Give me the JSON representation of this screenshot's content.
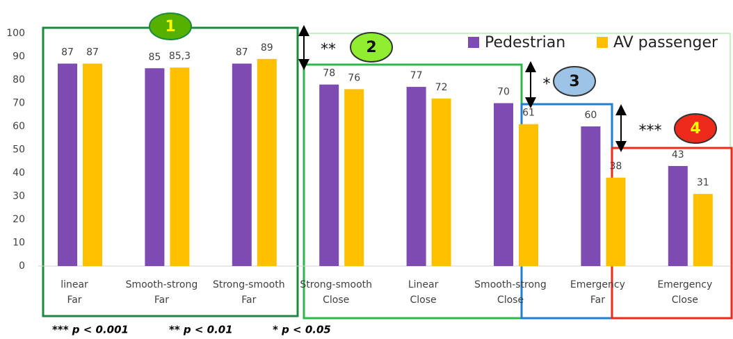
{
  "chart_data": {
    "type": "bar",
    "categories": [
      "linear\nFar",
      "Smooth-strong\nFar",
      "Strong-smooth\nFar",
      "Strong-smooth\nClose",
      "Linear\nClose",
      "Smooth-strong\nClose",
      "Emergency\nFar",
      "Emergency\nClose"
    ],
    "series": [
      {
        "name": "Pedestrian",
        "color": "#7e4bb3",
        "values": [
          87,
          85,
          87,
          78,
          77,
          70,
          60,
          43
        ]
      },
      {
        "name": "AV passenger",
        "color": "#ffc000",
        "values": [
          87,
          85.3,
          89,
          76,
          72,
          61,
          38,
          31
        ],
        "value_labels": [
          "87",
          "85,3",
          "89",
          "76",
          "72",
          "61",
          "38",
          "31"
        ]
      }
    ],
    "ylim": [
      0,
      100
    ],
    "yticks": [
      0,
      10,
      20,
      30,
      40,
      50,
      60,
      70,
      80,
      90,
      100
    ],
    "grid": false,
    "legend": "top-right",
    "annotations": [
      "1",
      "2",
      "3",
      "4",
      "**",
      "*",
      "***"
    ],
    "footnotes": [
      "*** p < 0.001",
      "** p < 0.01",
      "* p < 0.05"
    ]
  }
}
